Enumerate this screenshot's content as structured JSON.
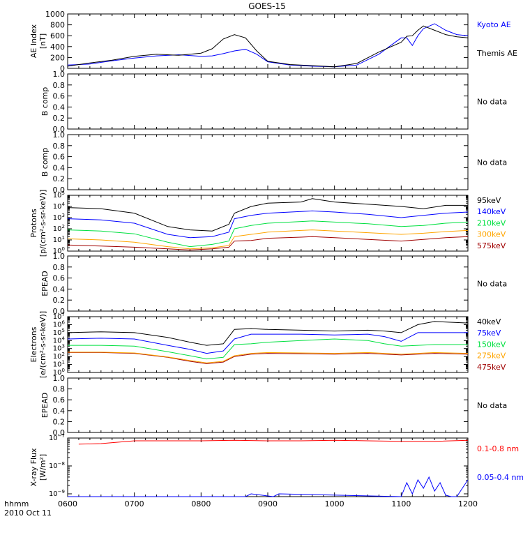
{
  "title": "GOES-15",
  "x_axis": {
    "ticks": [
      "0600",
      "0700",
      "0800",
      "0900",
      "1000",
      "1100",
      "1200"
    ],
    "corner_label_1": "hhmm",
    "corner_label_2": "2010 Oct 11"
  },
  "colors": {
    "black": "#000000",
    "blue": "#0000ff",
    "red": "#ff0000",
    "darkred": "#a00000",
    "orange": "#ffa500",
    "green": "#00e040"
  },
  "chart_data": [
    {
      "id": "ae",
      "type": "line",
      "ylabel": [
        "AE Index",
        "[nT]"
      ],
      "ylim": [
        0,
        1000
      ],
      "yticks": [
        "0",
        "200",
        "400",
        "600",
        "800",
        "1000"
      ],
      "x": [
        "06:00",
        "06:20",
        "06:40",
        "07:00",
        "07:20",
        "07:40",
        "08:00",
        "08:10",
        "08:20",
        "08:30",
        "08:40",
        "08:50",
        "09:00",
        "09:20",
        "09:40",
        "10:00",
        "10:20",
        "10:40",
        "11:00",
        "11:05",
        "11:10",
        "11:15",
        "11:20",
        "11:30",
        "11:40",
        "11:50",
        "12:00"
      ],
      "series": [
        {
          "name": "Kyoto AE",
          "color": "#0000ff",
          "values": [
            60,
            80,
            140,
            190,
            230,
            250,
            220,
            230,
            270,
            320,
            350,
            260,
            120,
            60,
            40,
            30,
            60,
            260,
            560,
            560,
            420,
            600,
            730,
            820,
            700,
            620,
            600
          ]
        },
        {
          "name": "Themis AE",
          "color": "#000000",
          "values": [
            40,
            100,
            150,
            220,
            260,
            240,
            280,
            360,
            540,
            620,
            560,
            320,
            130,
            70,
            50,
            30,
            90,
            300,
            480,
            590,
            600,
            700,
            780,
            700,
            620,
            580,
            560
          ]
        }
      ]
    },
    {
      "id": "bcomp1",
      "type": "line",
      "ylabel": [
        "B comp"
      ],
      "ylim": [
        0,
        1
      ],
      "yticks": [
        "0.0",
        "0.2",
        "0.4",
        "0.6",
        "0.8",
        "1.0"
      ],
      "series": [],
      "note": "No data"
    },
    {
      "id": "bcomp2",
      "type": "line",
      "ylabel": [
        "B comp"
      ],
      "ylim": [
        0,
        1
      ],
      "yticks": [
        "0.0",
        "0.2",
        "0.4",
        "0.6",
        "0.8",
        "1.0"
      ],
      "series": [],
      "note": "No data"
    },
    {
      "id": "protons",
      "type": "line",
      "scale": "log",
      "ylabel": [
        "Protons",
        "[p/(cm²-s-sr-keV)]"
      ],
      "ylim_exp": [
        0,
        5
      ],
      "ytick_exps": [
        0,
        1,
        2,
        3,
        4,
        5
      ],
      "x": [
        "06:00",
        "06:30",
        "07:00",
        "07:30",
        "07:50",
        "08:10",
        "08:25",
        "08:30",
        "08:45",
        "09:00",
        "09:30",
        "09:40",
        "10:00",
        "10:30",
        "11:00",
        "11:20",
        "11:40",
        "12:00"
      ],
      "series": [
        {
          "name": "575keV",
          "color": "#a00000",
          "values_exp": [
            0.55,
            0.45,
            0.35,
            0.2,
            0.1,
            0.2,
            0.35,
            0.9,
            0.95,
            1.15,
            1.25,
            1.3,
            1.2,
            1.05,
            0.9,
            1.05,
            1.2,
            1.3
          ]
        },
        {
          "name": "300keV",
          "color": "#ffa500",
          "values_exp": [
            1.1,
            1.0,
            0.8,
            0.4,
            0.2,
            0.3,
            0.5,
            1.3,
            1.5,
            1.7,
            1.85,
            1.9,
            1.8,
            1.65,
            1.5,
            1.6,
            1.75,
            1.85
          ]
        },
        {
          "name": "210keV",
          "color": "#00e040",
          "values_exp": [
            1.9,
            1.8,
            1.55,
            0.8,
            0.4,
            0.6,
            0.9,
            2.0,
            2.3,
            2.5,
            2.65,
            2.7,
            2.6,
            2.45,
            2.2,
            2.3,
            2.5,
            2.6
          ]
        },
        {
          "name": "140keV",
          "color": "#0000ff",
          "values_exp": [
            2.9,
            2.8,
            2.5,
            1.5,
            1.2,
            1.3,
            1.7,
            2.9,
            3.2,
            3.4,
            3.55,
            3.6,
            3.5,
            3.3,
            3.0,
            3.2,
            3.4,
            3.5
          ]
        },
        {
          "name": "95keV",
          "color": "#000000",
          "values_exp": [
            3.9,
            3.8,
            3.4,
            2.2,
            1.9,
            1.8,
            2.4,
            3.4,
            4.0,
            4.3,
            4.4,
            4.7,
            4.4,
            4.2,
            4.0,
            3.8,
            4.1,
            4.1
          ]
        }
      ]
    },
    {
      "id": "epead1",
      "type": "line",
      "ylabel": [
        "EPEAD"
      ],
      "ylim": [
        0,
        1
      ],
      "yticks": [
        "0.0",
        "0.2",
        "0.4",
        "0.6",
        "0.8",
        "1.0"
      ],
      "series": [],
      "note": "No data"
    },
    {
      "id": "electrons",
      "type": "line",
      "scale": "log",
      "ylabel": [
        "Electrons",
        "[e/(cm²-s-sr-keV)]"
      ],
      "ylim_exp": [
        0,
        7
      ],
      "ytick_exps": [
        0,
        1,
        2,
        3,
        4,
        5,
        6,
        7
      ],
      "x": [
        "06:00",
        "06:30",
        "07:00",
        "07:30",
        "07:50",
        "08:05",
        "08:20",
        "08:30",
        "08:45",
        "09:00",
        "09:30",
        "10:00",
        "10:30",
        "10:45",
        "11:00",
        "11:15",
        "11:30",
        "12:00"
      ],
      "series": [
        {
          "name": "475keV",
          "color": "#a00000",
          "values_exp": [
            2.5,
            2.5,
            2.4,
            1.9,
            1.4,
            1.1,
            1.3,
            2.0,
            2.3,
            2.4,
            2.35,
            2.3,
            2.4,
            2.3,
            2.2,
            2.3,
            2.4,
            2.3
          ]
        },
        {
          "name": "275keV",
          "color": "#ffa500",
          "values_exp": [
            2.55,
            2.55,
            2.45,
            1.95,
            1.5,
            1.2,
            1.4,
            2.1,
            2.4,
            2.5,
            2.45,
            2.4,
            2.5,
            2.4,
            2.3,
            2.4,
            2.5,
            2.4
          ]
        },
        {
          "name": "150keV",
          "color": "#00e040",
          "values_exp": [
            3.4,
            3.4,
            3.3,
            2.6,
            2.1,
            1.7,
            1.9,
            3.5,
            3.6,
            3.8,
            4.0,
            4.2,
            4.0,
            3.6,
            3.3,
            3.4,
            3.5,
            3.5
          ]
        },
        {
          "name": "75keV",
          "color": "#0000ff",
          "values_exp": [
            4.2,
            4.3,
            4.2,
            3.4,
            2.9,
            2.4,
            2.7,
            4.2,
            4.8,
            4.8,
            4.8,
            4.7,
            4.8,
            4.5,
            3.9,
            5.0,
            5.0,
            5.0
          ]
        },
        {
          "name": "40keV",
          "color": "#000000",
          "values_exp": [
            5.0,
            5.1,
            5.0,
            4.4,
            3.8,
            3.4,
            3.6,
            5.4,
            5.5,
            5.4,
            5.3,
            5.2,
            5.3,
            5.2,
            5.0,
            6.0,
            6.4,
            6.2
          ]
        }
      ]
    },
    {
      "id": "epead2",
      "type": "line",
      "ylabel": [
        "EPEAD"
      ],
      "ylim": [
        0,
        1
      ],
      "yticks": [
        "0.0",
        "0.2",
        "0.4",
        "0.6",
        "0.8",
        "1.0"
      ],
      "series": [],
      "note": "No data"
    },
    {
      "id": "xray",
      "type": "line",
      "scale": "log",
      "ylabel": [
        "X-ray Flux",
        "[W/m²]"
      ],
      "ylim_exp": [
        -9.1,
        -7
      ],
      "ytick_exps": [
        -9,
        -8,
        -7
      ],
      "series": [
        {
          "name": "0.1-0.8 nm",
          "color": "#ff0000",
          "x": [
            "06:10",
            "06:30",
            "07:00",
            "07:30",
            "08:00",
            "08:30",
            "09:00",
            "09:30",
            "10:00",
            "10:30",
            "11:00",
            "11:30",
            "12:00"
          ],
          "values_exp": [
            -7.22,
            -7.2,
            -7.1,
            -7.1,
            -7.1,
            -7.08,
            -7.1,
            -7.1,
            -7.08,
            -7.1,
            -7.12,
            -7.12,
            -7.08
          ]
        },
        {
          "name": "0.05-0.4 nm",
          "color": "#0000ff",
          "x": [
            "06:00",
            "08:40",
            "08:45",
            "09:05",
            "09:10",
            "11:00",
            "11:05",
            "11:10",
            "11:15",
            "11:20",
            "11:25",
            "11:30",
            "11:35",
            "11:40",
            "11:45",
            "11:50",
            "11:55",
            "12:00"
          ],
          "values_exp": [
            -9.1,
            -9.1,
            -9.0,
            -9.1,
            -9.0,
            -9.1,
            -8.6,
            -9.0,
            -8.5,
            -8.8,
            -8.4,
            -8.9,
            -8.6,
            -9.05,
            -9.1,
            -9.1,
            -8.8,
            -8.5
          ]
        }
      ]
    }
  ]
}
